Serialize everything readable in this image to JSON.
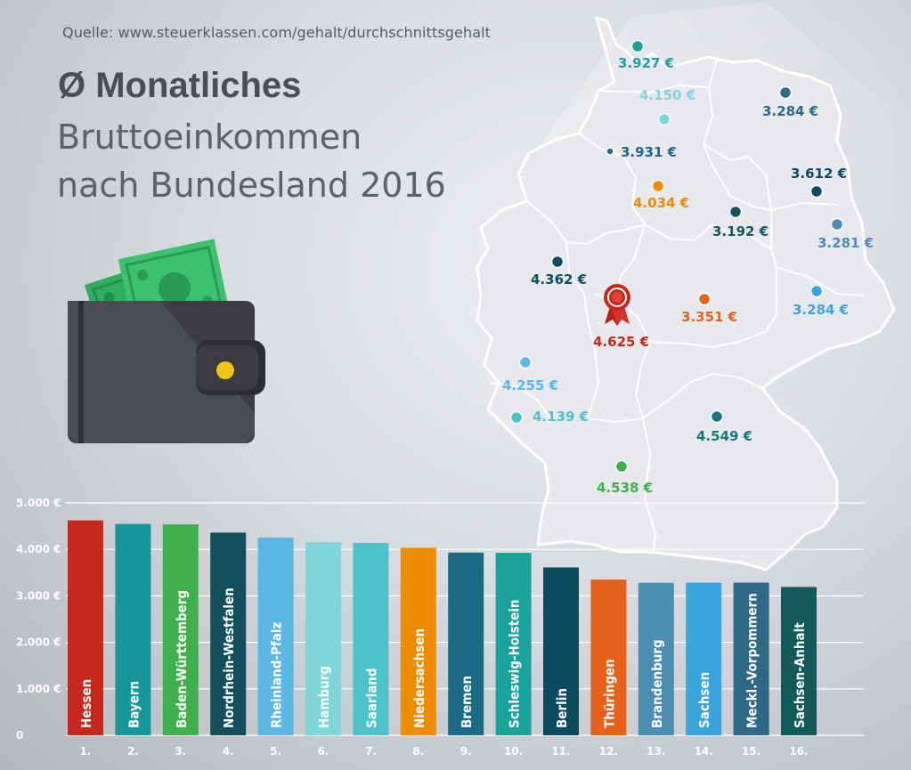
{
  "header": {
    "source": "Quelle: www.steuerklassen.com/gehalt/durchschnittsgehalt",
    "title_line1": "Ø Monatliches",
    "title_line2": "Bruttoeinkommen",
    "title_line3": "nach Bundesland 2016"
  },
  "colors": {
    "background": "#d3d6da",
    "map_fill": "#e7e9ec",
    "grid": "#ffffff",
    "axis_text": "#ffffff"
  },
  "icons": [
    "wallet-icon",
    "banknote-icon",
    "award-rosette-icon"
  ],
  "map_labels": [
    {
      "state": "Schleswig-Holstein",
      "value": "3.927 €",
      "color": "#1aa39b"
    },
    {
      "state": "Hamburg",
      "value": "4.150 €",
      "color": "#7fd6d8"
    },
    {
      "state": "Mecklenburg-Vorpommern",
      "value": "3.284 €",
      "color": "#2e6a85"
    },
    {
      "state": "Bremen",
      "value": "3.931 €",
      "color": "#1a6b85"
    },
    {
      "state": "Berlin",
      "value": "3.612 €",
      "color": "#0c4a5e"
    },
    {
      "state": "Niedersachsen",
      "value": "4.034 €",
      "color": "#ee8c00"
    },
    {
      "state": "Sachsen-Anhalt",
      "value": "3.192 €",
      "color": "#13595a"
    },
    {
      "state": "Brandenburg",
      "value": "3.281 €",
      "color": "#4b8db3"
    },
    {
      "state": "Nordrhein-Westfalen",
      "value": "4.362 €",
      "color": "#134e5c"
    },
    {
      "state": "Hessen",
      "value": "4.625 €",
      "color": "#c6281e"
    },
    {
      "state": "Thüringen",
      "value": "3.351 €",
      "color": "#e6621a"
    },
    {
      "state": "Sachsen",
      "value": "3.284 €",
      "color": "#3aa5dd"
    },
    {
      "state": "Rheinland-Pfalz",
      "value": "4.255 €",
      "color": "#5bb7e6"
    },
    {
      "state": "Saarland",
      "value": "4.139 €",
      "color": "#4cc3cb"
    },
    {
      "state": "Bayern",
      "value": "4.549 €",
      "color": "#17797d"
    },
    {
      "state": "Baden-Württemberg",
      "value": "4.538 €",
      "color": "#3fb04b"
    }
  ],
  "chart_data": {
    "type": "bar",
    "ylim": [
      0,
      5000
    ],
    "yticks": [
      "0",
      "1.000 €",
      "2.000 €",
      "3.000 €",
      "4.000 €",
      "5.000 €"
    ],
    "ytick_values": [
      0,
      1000,
      2000,
      3000,
      4000,
      5000
    ],
    "grid": true,
    "categories": [
      "Hessen",
      "Bayern",
      "Baden-Württemberg",
      "Nordrhein-Westfalen",
      "Rheinland-Pfalz",
      "Hamburg",
      "Saarland",
      "Niedersachsen",
      "Bremen",
      "Schleswig-Holstein",
      "Berlin",
      "Thüringen",
      "Brandenburg",
      "Sachsen",
      "Meckl.-Vorpommern",
      "Sachsen-Anhalt"
    ],
    "ranks": [
      "1.",
      "2.",
      "3.",
      "4.",
      "5.",
      "6.",
      "7.",
      "8.",
      "9.",
      "10.",
      "11.",
      "12.",
      "13.",
      "14.",
      "15.",
      "16."
    ],
    "values": [
      4625,
      4549,
      4538,
      4362,
      4255,
      4150,
      4139,
      4034,
      3931,
      3927,
      3612,
      3351,
      3281,
      3284,
      3284,
      3192
    ],
    "colors": [
      "#c6281e",
      "#17979b",
      "#3fb04b",
      "#134e5c",
      "#5bb7e6",
      "#7fd6d8",
      "#4cc3cb",
      "#ee8c00",
      "#1a6b85",
      "#1aa39b",
      "#0c4a5e",
      "#e6621a",
      "#4b8db3",
      "#3aa5dd",
      "#2e6a85",
      "#13595a"
    ]
  }
}
